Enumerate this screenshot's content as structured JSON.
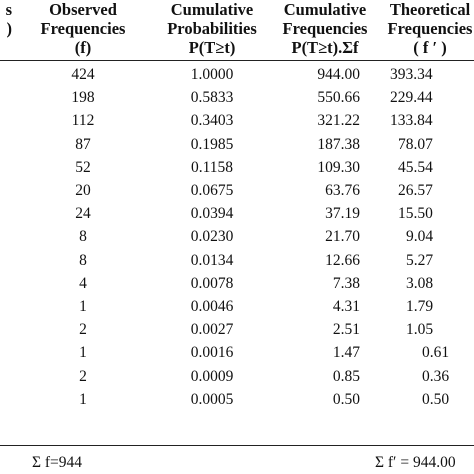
{
  "headers": {
    "col0": [
      "s",
      ")"
    ],
    "col1": [
      "Observed",
      "Frequencies",
      "(f)"
    ],
    "col2": [
      "Cumulative",
      "Probabilities",
      "P(T≥t)"
    ],
    "col3": [
      "Cumulative",
      "Frequencies",
      "P(T≥t).Σf"
    ],
    "col4": [
      "Theoretical",
      "Frequencies",
      "( f ′ )"
    ]
  },
  "rows": [
    {
      "f": "424",
      "p": "1.0000",
      "cf": "944.00",
      "tf": "393.34"
    },
    {
      "f": "198",
      "p": "0.5833",
      "cf": "550.66",
      "tf": "229.44"
    },
    {
      "f": "112",
      "p": "0.3403",
      "cf": "321.22",
      "tf": "133.84"
    },
    {
      "f": "87",
      "p": "0.1985",
      "cf": "187.38",
      "tf": "78.07"
    },
    {
      "f": "52",
      "p": "0.1158",
      "cf": "109.30",
      "tf": "45.54"
    },
    {
      "f": "20",
      "p": "0.0675",
      "cf": "63.76",
      "tf": "26.57"
    },
    {
      "f": "24",
      "p": "0.0394",
      "cf": "37.19",
      "tf": "15.50"
    },
    {
      "f": "8",
      "p": "0.0230",
      "cf": "21.70",
      "tf": "9.04"
    },
    {
      "f": "8",
      "p": "0.0134",
      "cf": "12.66",
      "tf": "5.27"
    },
    {
      "f": "4",
      "p": "0.0078",
      "cf": "7.38",
      "tf": "3.08"
    },
    {
      "f": "1",
      "p": "0.0046",
      "cf": "4.31",
      "tf": "1.79"
    },
    {
      "f": "2",
      "p": "0.0027",
      "cf": "2.51",
      "tf": "1.05"
    },
    {
      "f": "1",
      "p": "0.0016",
      "cf": "1.47",
      "tf": "0.61"
    },
    {
      "f": "2",
      "p": "0.0009",
      "cf": "0.85",
      "tf": "0.36"
    },
    {
      "f": "1",
      "p": "0.0005",
      "cf": "0.50",
      "tf": "0.50"
    }
  ],
  "footer": {
    "sum_f": "Σ f=944",
    "sum_tf": "Σ f′ = 944.00"
  }
}
